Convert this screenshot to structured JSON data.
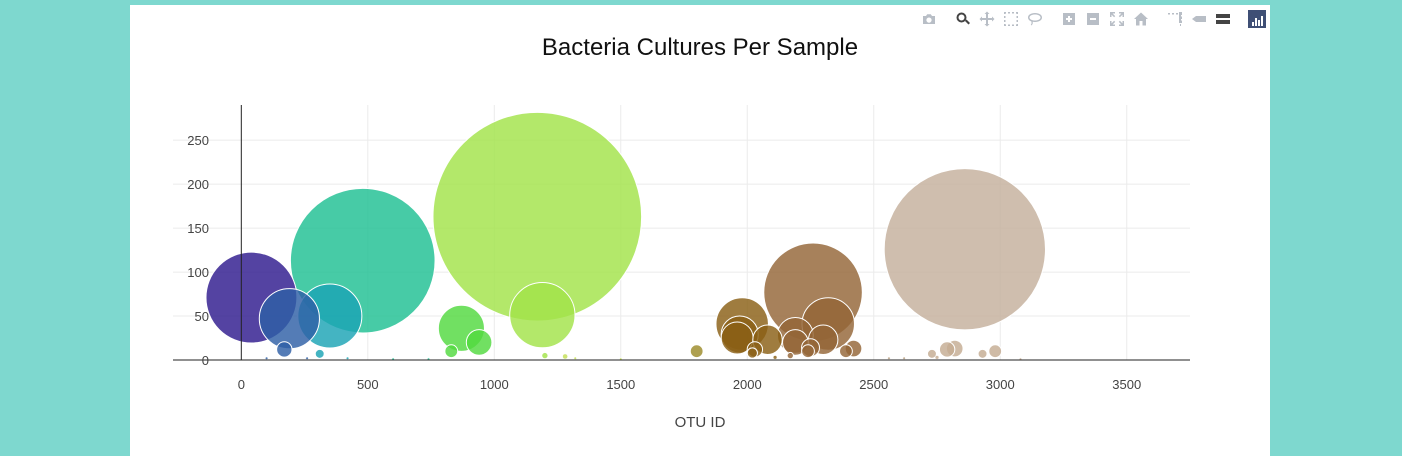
{
  "chart_data": {
    "type": "scatter",
    "title": "Bacteria Cultures Per Sample",
    "xlabel": "OTU ID",
    "ylabel": "",
    "xlim": [
      -270,
      3750
    ],
    "ylim": [
      0,
      290
    ],
    "xticks": [
      0,
      500,
      1000,
      1500,
      2000,
      2500,
      3000,
      3500
    ],
    "yticks": [
      0,
      50,
      100,
      150,
      200,
      250
    ],
    "grid": true,
    "legend": "none",
    "marker_size_encodes": "y",
    "points": [
      {
        "x": 40,
        "y": 71,
        "color": "#2e1a8e"
      },
      {
        "x": 190,
        "y": 47,
        "color": "#2e5fa6"
      },
      {
        "x": 170,
        "y": 12,
        "color": "#2e5fa6"
      },
      {
        "x": 350,
        "y": 50,
        "color": "#1ba3b4"
      },
      {
        "x": 310,
        "y": 7,
        "color": "#1ba3b4"
      },
      {
        "x": 480,
        "y": 113,
        "color": "#1fc092"
      },
      {
        "x": 870,
        "y": 36,
        "color": "#52d93f"
      },
      {
        "x": 940,
        "y": 20,
        "color": "#52d93f"
      },
      {
        "x": 830,
        "y": 10,
        "color": "#52d93f"
      },
      {
        "x": 1170,
        "y": 163,
        "color": "#a2e349"
      },
      {
        "x": 1190,
        "y": 51,
        "color": "#a2e349"
      },
      {
        "x": 1200,
        "y": 5,
        "color": "#a2e349"
      },
      {
        "x": 1280,
        "y": 4,
        "color": "#c5df56"
      },
      {
        "x": 1800,
        "y": 10,
        "color": "#9c8b2a"
      },
      {
        "x": 1980,
        "y": 41,
        "color": "#8a5f15"
      },
      {
        "x": 1970,
        "y": 29,
        "color": "#8a5f15"
      },
      {
        "x": 1960,
        "y": 25,
        "color": "#8a5f15"
      },
      {
        "x": 2080,
        "y": 23,
        "color": "#8a5f15"
      },
      {
        "x": 2030,
        "y": 12,
        "color": "#8a5f15"
      },
      {
        "x": 2020,
        "y": 8,
        "color": "#8a5f15"
      },
      {
        "x": 2260,
        "y": 77,
        "color": "#946537"
      },
      {
        "x": 2320,
        "y": 41,
        "color": "#946537"
      },
      {
        "x": 2190,
        "y": 28,
        "color": "#946537"
      },
      {
        "x": 2190,
        "y": 20,
        "color": "#946537"
      },
      {
        "x": 2300,
        "y": 23,
        "color": "#946537"
      },
      {
        "x": 2250,
        "y": 14,
        "color": "#946537"
      },
      {
        "x": 2240,
        "y": 10,
        "color": "#946537"
      },
      {
        "x": 2420,
        "y": 13,
        "color": "#946537"
      },
      {
        "x": 2390,
        "y": 10,
        "color": "#946537"
      },
      {
        "x": 2170,
        "y": 5,
        "color": "#946537"
      },
      {
        "x": 2860,
        "y": 126,
        "color": "#c4b09c"
      },
      {
        "x": 2790,
        "y": 12,
        "color": "#c4ac92"
      },
      {
        "x": 2820,
        "y": 13,
        "color": "#c4ac92"
      },
      {
        "x": 2980,
        "y": 10,
        "color": "#c4ac92"
      },
      {
        "x": 2930,
        "y": 7,
        "color": "#c4ac92"
      },
      {
        "x": 2730,
        "y": 7,
        "color": "#c4ac92"
      },
      {
        "x": 2750,
        "y": 3,
        "color": "#c4ac92"
      },
      {
        "x": 100,
        "y": 2,
        "color": "#2e5fa6"
      },
      {
        "x": 260,
        "y": 2,
        "color": "#2e5fa6"
      },
      {
        "x": 420,
        "y": 2,
        "color": "#1ba3b4"
      },
      {
        "x": 600,
        "y": 1,
        "color": "#1fc092"
      },
      {
        "x": 740,
        "y": 1,
        "color": "#1fc092"
      },
      {
        "x": 1320,
        "y": 2,
        "color": "#c5df56"
      },
      {
        "x": 1500,
        "y": 1,
        "color": "#c5df56"
      },
      {
        "x": 2110,
        "y": 3,
        "color": "#8a5f15"
      },
      {
        "x": 2560,
        "y": 2,
        "color": "#b8a080"
      },
      {
        "x": 2620,
        "y": 2,
        "color": "#b8a080"
      },
      {
        "x": 3080,
        "y": 1,
        "color": "#c4ac92"
      }
    ]
  },
  "modebar": {
    "icons": [
      "camera-icon",
      "zoom-icon",
      "pan-icon",
      "box-select-icon",
      "lasso-select-icon",
      "zoom-in-icon",
      "zoom-out-icon",
      "autoscale-icon",
      "reset-axes-icon",
      "spike-lines-icon",
      "hover-closest-icon",
      "hover-compare-icon",
      "plotly-logo-icon"
    ],
    "active": "zoom-icon"
  }
}
